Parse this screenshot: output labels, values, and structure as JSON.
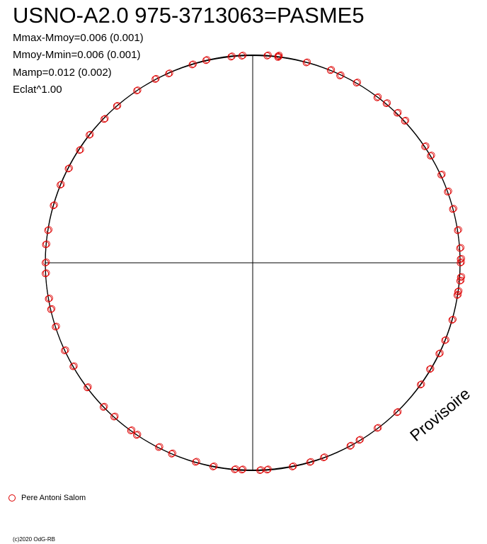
{
  "title": "USNO-A2.0 975-3713063=PASME5",
  "stats": [
    "Mmax-Mmoy=0.006 (0.001)",
    "Mmoy-Mmin=0.006 (0.001)",
    "Mamp=0.012 (0.002)",
    "Eclat^1.00"
  ],
  "watermark": "Provisoire",
  "legend_label": "Pere Antoni Salom",
  "copyright": "(c)2020 OdG-RB",
  "colors": {
    "observer": "#dd0000",
    "curve": "#000000",
    "axes": "#000000"
  },
  "chart_data": {
    "type": "scatter",
    "projection": "polar",
    "series": [
      {
        "name": "Pere Antoni Salom",
        "color": "#dd0000",
        "marker": "open-circle",
        "points": [
          [
            4,
            1.0
          ],
          [
            7,
            0.998
          ],
          [
            7,
            1.004
          ],
          [
            15,
            0.998
          ],
          [
            22,
            1.0
          ],
          [
            25,
            0.995
          ],
          [
            30,
            1.001
          ],
          [
            37,
            0.997
          ],
          [
            40,
            1.002
          ],
          [
            44,
            1.003
          ],
          [
            47,
            1.002
          ],
          [
            56,
            1.001
          ],
          [
            59,
            1.0
          ],
          [
            65,
            1.002
          ],
          [
            70,
            1.0
          ],
          [
            75,
            0.998
          ],
          [
            81,
            1.0
          ],
          [
            86,
            1.001
          ],
          [
            89,
            1.002
          ],
          [
            90,
            1.001
          ],
          [
            94,
            1.005
          ],
          [
            95,
            1.003
          ],
          [
            98,
            0.999
          ],
          [
            99,
            0.998
          ],
          [
            106,
            1.0
          ],
          [
            112,
            0.999
          ],
          [
            116,
            1.0
          ],
          [
            121,
            0.996
          ],
          [
            126,
            1.0
          ],
          [
            136,
            1.002
          ],
          [
            143,
            0.998
          ],
          [
            149,
            0.997
          ],
          [
            152,
            1.0
          ],
          [
            160,
            0.999
          ],
          [
            164,
            1.0
          ],
          [
            169,
            1.001
          ],
          [
            176,
            1.0
          ],
          [
            178,
            1.001
          ],
          [
            183,
            0.999
          ],
          [
            185,
            1.0
          ],
          [
            191,
            1.001
          ],
          [
            196,
            0.999
          ],
          [
            203,
            1.0
          ],
          [
            207,
            0.998
          ],
          [
            214,
            1.001
          ],
          [
            216,
            1.0
          ],
          [
            222,
            0.999
          ],
          [
            226,
            1.001
          ],
          [
            233,
            0.999
          ],
          [
            240,
            1.0
          ],
          [
            245,
            1.001
          ],
          [
            252,
            1.0
          ],
          [
            257,
            0.999
          ],
          [
            260,
            1.0
          ],
          [
            267,
            1.001
          ],
          [
            270,
            1.0
          ],
          [
            275,
            1.002
          ],
          [
            279,
            1.0
          ],
          [
            286,
            1.0
          ],
          [
            292,
            1.001
          ],
          [
            297,
            0.998
          ],
          [
            303,
            0.996
          ],
          [
            308,
            1.0
          ],
          [
            314,
            0.996
          ],
          [
            319,
            1.0
          ],
          [
            326,
            1.0
          ],
          [
            332,
            1.002
          ],
          [
            336,
            0.997
          ],
          [
            343,
            0.998
          ],
          [
            347,
            1.001
          ],
          [
            354,
            0.998
          ],
          [
            357,
            0.998
          ]
        ]
      }
    ],
    "curve": {
      "type": "fit",
      "amplitude_mag": 0.012,
      "harmonics": [
        [
          2,
          0.0015,
          0
        ],
        [
          4,
          0.001,
          20
        ]
      ]
    },
    "axes": {
      "crosshair": true,
      "grid": false
    },
    "legend_position": "bottom-left"
  }
}
